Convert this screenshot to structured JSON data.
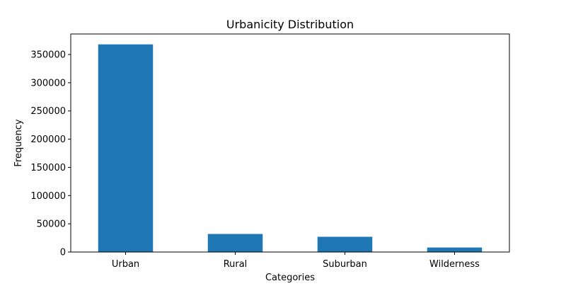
{
  "chart_data": {
    "type": "bar",
    "title": "Urbanicity Distribution",
    "xlabel": "Categories",
    "ylabel": "Frequency",
    "categories": [
      "Urban",
      "Rural",
      "Suburban",
      "Wilderness"
    ],
    "values": [
      368000,
      32000,
      27000,
      8000
    ],
    "ylim": [
      0,
      386400
    ],
    "yticks": [
      0,
      50000,
      100000,
      150000,
      200000,
      250000,
      300000,
      350000
    ],
    "grid": false,
    "legend": "none",
    "bar_color": "#1f77b4"
  }
}
